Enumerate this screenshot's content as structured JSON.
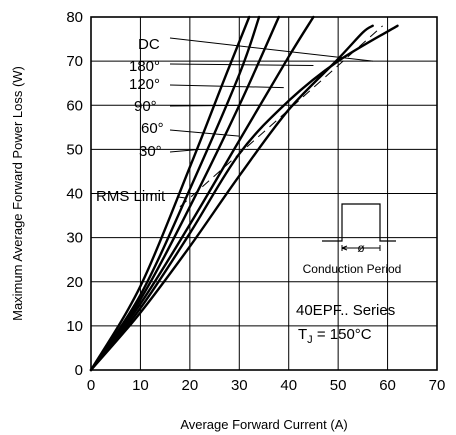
{
  "chart_data": {
    "type": "line",
    "xlabel": "Average Forward Current (A)",
    "ylabel": "Maximum Average Forward Power Loss (W)",
    "xlim": [
      0,
      70
    ],
    "ylim": [
      0,
      80
    ],
    "xticks": [
      0,
      10,
      20,
      30,
      40,
      50,
      60,
      70
    ],
    "yticks": [
      0,
      10,
      20,
      30,
      40,
      50,
      60,
      70,
      80
    ],
    "grid": true,
    "series": [
      {
        "name": "30°",
        "points": [
          [
            0,
            0
          ],
          [
            10,
            13
          ],
          [
            20,
            28
          ],
          [
            30,
            44
          ],
          [
            40,
            59
          ],
          [
            50,
            70.5
          ],
          [
            55,
            76.5
          ],
          [
            57,
            78
          ]
        ]
      },
      {
        "name": "60°",
        "points": [
          [
            0,
            0
          ],
          [
            10,
            15
          ],
          [
            20,
            33
          ],
          [
            30,
            52
          ],
          [
            40,
            71
          ],
          [
            45,
            80
          ]
        ]
      },
      {
        "name": "90°",
        "points": [
          [
            0,
            0
          ],
          [
            10,
            16
          ],
          [
            20,
            37
          ],
          [
            30,
            60
          ],
          [
            38,
            80
          ]
        ]
      },
      {
        "name": "120°",
        "points": [
          [
            0,
            0
          ],
          [
            10,
            17
          ],
          [
            20,
            41
          ],
          [
            30,
            67
          ],
          [
            34,
            80
          ]
        ]
      },
      {
        "name": "180°",
        "points": [
          [
            0,
            0
          ],
          [
            10,
            19
          ],
          [
            20,
            46
          ],
          [
            27,
            66
          ],
          [
            32,
            80
          ]
        ]
      },
      {
        "name": "DC",
        "points": [
          [
            0,
            0
          ],
          [
            10,
            14
          ],
          [
            20,
            31
          ],
          [
            30,
            49
          ],
          [
            40,
            61
          ],
          [
            50,
            70
          ],
          [
            62,
            78
          ]
        ]
      }
    ],
    "rms_limit": {
      "name": "RMS Limit",
      "points": [
        [
          18,
          37
        ],
        [
          59,
          78
        ]
      ]
    },
    "annotations": {
      "conduction_period": "Conduction Period",
      "phi": "ø",
      "series_name": "40EPF.. Series",
      "tj_label": "T",
      "tj_sub": "J",
      "tj_value": " = 150°C"
    }
  }
}
